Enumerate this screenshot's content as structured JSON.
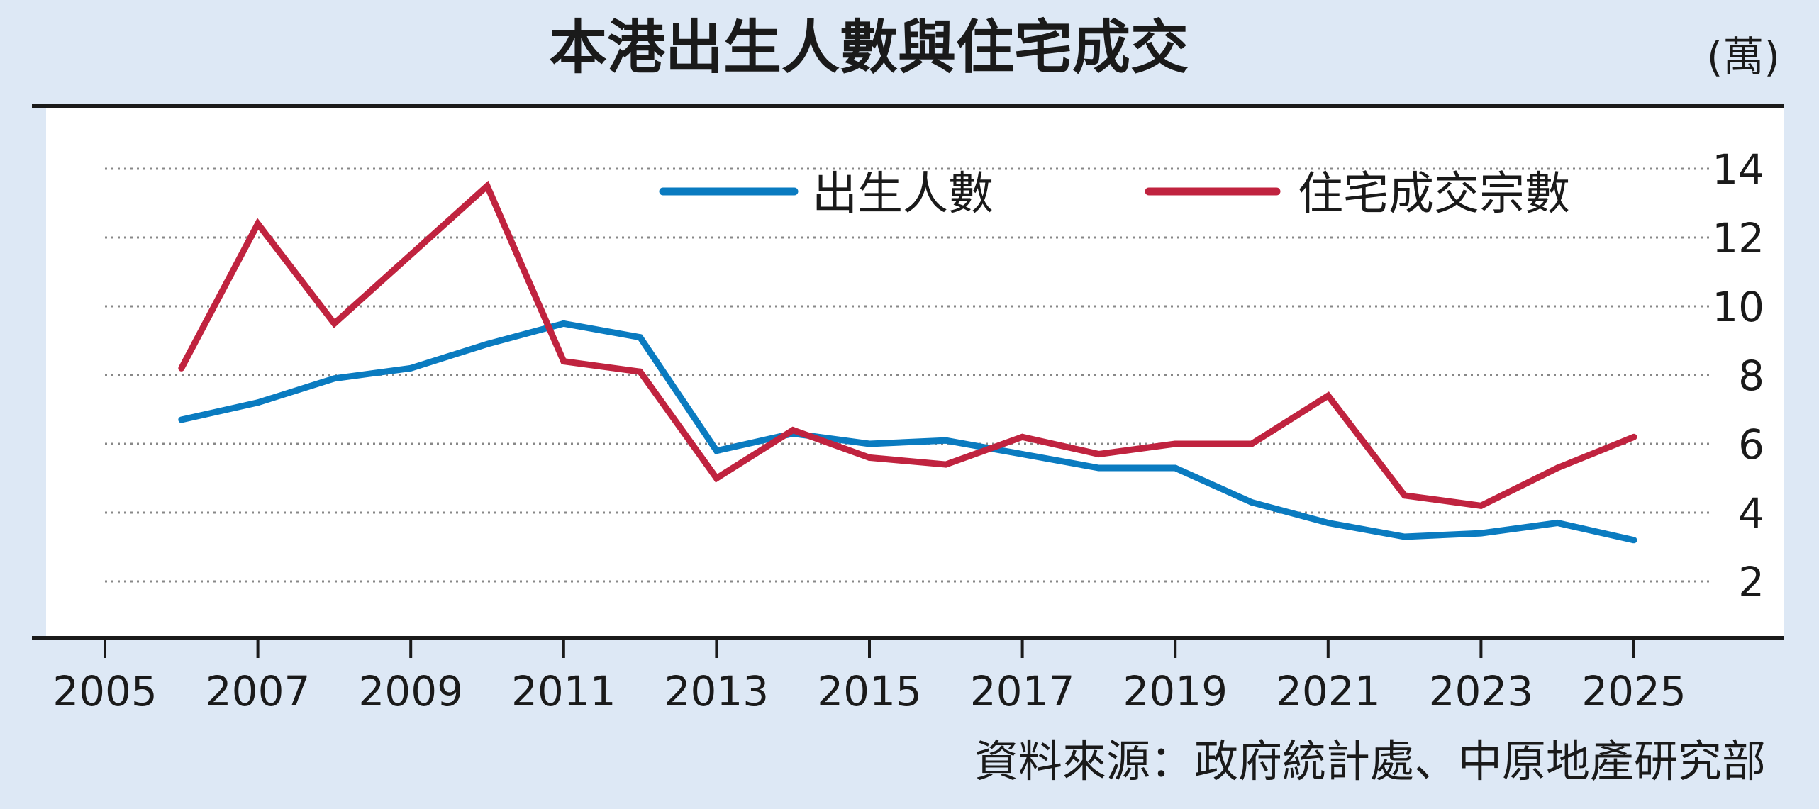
{
  "chart_data": {
    "type": "line",
    "title": "本港出生人數與住宅成交",
    "unit": "(萬)",
    "source": "資料來源：政府統計處、中原地產研究部",
    "x_ticks": [
      "2005",
      "2007",
      "2009",
      "2011",
      "2013",
      "2015",
      "2017",
      "2019",
      "2021",
      "2023",
      "2025"
    ],
    "y_ticks": [
      "2",
      "4",
      "6",
      "8",
      "10",
      "12",
      "14"
    ],
    "xlim": [
      2005,
      2026.5
    ],
    "ylim": [
      0,
      14.8
    ],
    "grid": "horizontal dotted",
    "legend_position": "top",
    "series": [
      {
        "name": "出生人數",
        "color": "#0a7bc0",
        "x": [
          2006,
          2007,
          2008,
          2009,
          2010,
          2011,
          2012,
          2013,
          2014,
          2015,
          2016,
          2017,
          2018,
          2019,
          2020,
          2021,
          2022,
          2023,
          2024,
          2025
        ],
        "values": [
          6.7,
          7.2,
          7.9,
          8.2,
          8.9,
          9.5,
          9.1,
          5.8,
          6.3,
          6.0,
          6.1,
          5.7,
          5.3,
          5.3,
          4.3,
          3.7,
          3.3,
          3.4,
          3.7,
          3.2
        ]
      },
      {
        "name": "住宅成交宗數",
        "color": "#c0233f",
        "x": [
          2006,
          2007,
          2008,
          2009,
          2010,
          2011,
          2012,
          2013,
          2014,
          2015,
          2016,
          2017,
          2018,
          2019,
          2020,
          2021,
          2022,
          2023,
          2024,
          2025
        ],
        "values": [
          8.2,
          12.4,
          9.5,
          11.5,
          13.5,
          8.4,
          8.1,
          5.0,
          6.4,
          5.6,
          5.4,
          6.2,
          5.7,
          6.0,
          6.0,
          7.4,
          4.5,
          4.2,
          5.3,
          6.2
        ]
      }
    ]
  }
}
